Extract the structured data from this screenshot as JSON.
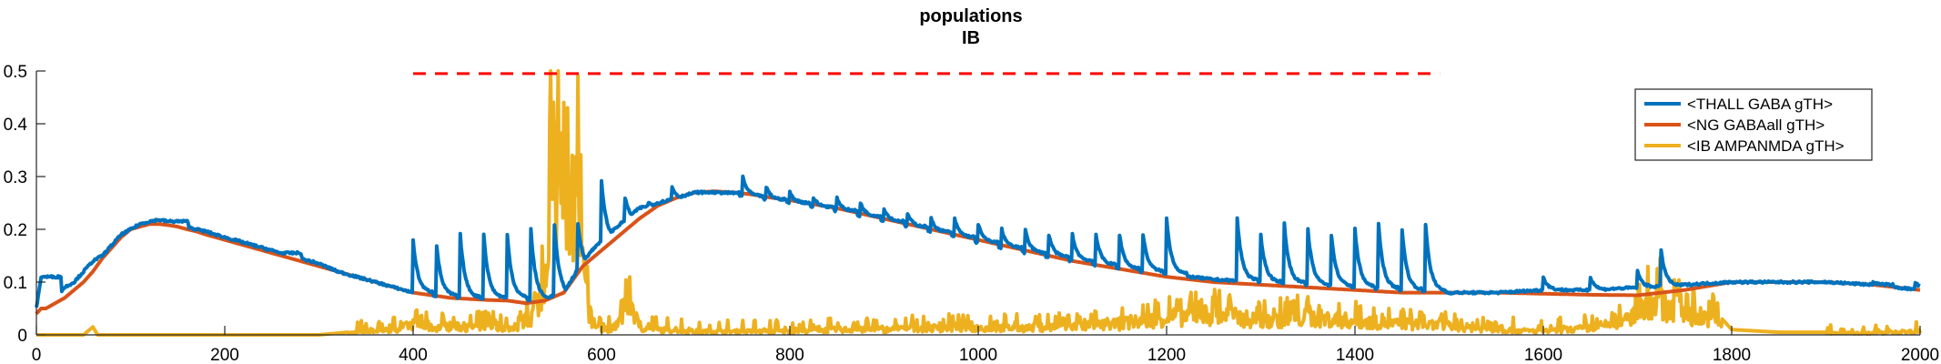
{
  "chart_data": {
    "type": "line",
    "title": "populations",
    "subtitle": "IB",
    "xlabel": "",
    "ylabel": "",
    "xlim": [
      0,
      2000
    ],
    "ylim": [
      0,
      0.5
    ],
    "xticks": [
      0,
      200,
      400,
      600,
      800,
      1000,
      1200,
      1400,
      1600,
      1800,
      2000
    ],
    "yticks": [
      0,
      0.1,
      0.2,
      0.3,
      0.4,
      0.5
    ],
    "ytick_labels": [
      "0",
      "0.1",
      "0.2",
      "0.3",
      "0.4",
      "0.5"
    ],
    "grid": false,
    "legend_position": "top-right",
    "series": [
      {
        "name": "<THALL GABA gTH>",
        "color": "#0072BD",
        "x": [
          0,
          5,
          12,
          20,
          30,
          40,
          50,
          60,
          70,
          80,
          90,
          100,
          110,
          120,
          130,
          140,
          150,
          160,
          170,
          180,
          190,
          200,
          220,
          240,
          260,
          280,
          300,
          320,
          340,
          360,
          380,
          400,
          420,
          440,
          460,
          480,
          500,
          520,
          540,
          560,
          580,
          600,
          620,
          640,
          660,
          680,
          700,
          720,
          740,
          760,
          780,
          800,
          850,
          900,
          950,
          1000,
          1050,
          1100,
          1150,
          1200,
          1250,
          1300,
          1350,
          1400,
          1450,
          1500,
          1550,
          1600,
          1650,
          1700,
          1750,
          1800,
          1850,
          1900,
          1950,
          2000
        ],
        "y": [
          0.05,
          0.11,
          0.07,
          0.07,
          0.09,
          0.1,
          0.12,
          0.14,
          0.15,
          0.17,
          0.19,
          0.2,
          0.21,
          0.215,
          0.218,
          0.215,
          0.21,
          0.205,
          0.2,
          0.196,
          0.19,
          0.185,
          0.175,
          0.165,
          0.155,
          0.145,
          0.135,
          0.12,
          0.11,
          0.1,
          0.09,
          0.08,
          0.075,
          0.07,
          0.07,
          0.07,
          0.07,
          0.065,
          0.07,
          0.08,
          0.14,
          0.18,
          0.21,
          0.24,
          0.25,
          0.26,
          0.27,
          0.27,
          0.265,
          0.26,
          0.255,
          0.25,
          0.235,
          0.215,
          0.195,
          0.175,
          0.155,
          0.14,
          0.125,
          0.115,
          0.105,
          0.1,
          0.095,
          0.09,
          0.085,
          0.08,
          0.08,
          0.085,
          0.085,
          0.09,
          0.095,
          0.1,
          0.1,
          0.1,
          0.095,
          0.085
        ],
        "peaks": [
          [
            5,
            0.11
          ],
          [
            60,
            0.1
          ],
          [
            140,
            0.21
          ],
          [
            260,
            0.13
          ],
          [
            400,
            0.18
          ],
          [
            425,
            0.17
          ],
          [
            450,
            0.19
          ],
          [
            475,
            0.19
          ],
          [
            500,
            0.19
          ],
          [
            525,
            0.2
          ],
          [
            550,
            0.21
          ],
          [
            575,
            0.21
          ],
          [
            600,
            0.29
          ],
          [
            625,
            0.26
          ],
          [
            650,
            0.25
          ],
          [
            675,
            0.28
          ],
          [
            700,
            0.27
          ],
          [
            725,
            0.27
          ],
          [
            750,
            0.3
          ],
          [
            775,
            0.28
          ],
          [
            800,
            0.27
          ],
          [
            825,
            0.26
          ],
          [
            850,
            0.26
          ],
          [
            875,
            0.25
          ],
          [
            900,
            0.24
          ],
          [
            925,
            0.23
          ],
          [
            950,
            0.22
          ],
          [
            975,
            0.22
          ],
          [
            1000,
            0.21
          ],
          [
            1025,
            0.2
          ],
          [
            1050,
            0.2
          ],
          [
            1075,
            0.19
          ],
          [
            1100,
            0.19
          ],
          [
            1125,
            0.19
          ],
          [
            1150,
            0.19
          ],
          [
            1175,
            0.19
          ],
          [
            1200,
            0.22
          ],
          [
            1275,
            0.22
          ],
          [
            1300,
            0.19
          ],
          [
            1325,
            0.21
          ],
          [
            1350,
            0.2
          ],
          [
            1375,
            0.19
          ],
          [
            1400,
            0.2
          ],
          [
            1425,
            0.21
          ],
          [
            1450,
            0.2
          ],
          [
            1475,
            0.21
          ],
          [
            1600,
            0.11
          ],
          [
            1650,
            0.11
          ],
          [
            1700,
            0.12
          ],
          [
            1725,
            0.16
          ],
          [
            1950,
            0.1
          ],
          [
            1995,
            0.1
          ]
        ]
      },
      {
        "name": "<NG GABAall gTH>",
        "color": "#D95319",
        "x": [
          0,
          5,
          10,
          20,
          30,
          40,
          50,
          60,
          70,
          80,
          90,
          100,
          110,
          120,
          130,
          140,
          150,
          160,
          170,
          180,
          190,
          200,
          220,
          240,
          260,
          280,
          300,
          320,
          340,
          360,
          380,
          400,
          420,
          440,
          460,
          480,
          500,
          520,
          540,
          560,
          580,
          600,
          620,
          640,
          660,
          680,
          700,
          720,
          740,
          760,
          780,
          800,
          850,
          900,
          950,
          1000,
          1050,
          1100,
          1150,
          1200,
          1250,
          1300,
          1350,
          1400,
          1450,
          1500,
          1550,
          1600,
          1650,
          1700,
          1750,
          1800,
          1850,
          1900,
          1950,
          2000
        ],
        "y": [
          0.04,
          0.05,
          0.05,
          0.06,
          0.07,
          0.085,
          0.1,
          0.12,
          0.145,
          0.165,
          0.185,
          0.2,
          0.205,
          0.21,
          0.21,
          0.208,
          0.205,
          0.2,
          0.196,
          0.19,
          0.185,
          0.18,
          0.17,
          0.16,
          0.15,
          0.14,
          0.13,
          0.12,
          0.11,
          0.1,
          0.09,
          0.08,
          0.075,
          0.07,
          0.068,
          0.066,
          0.065,
          0.06,
          0.065,
          0.08,
          0.13,
          0.16,
          0.19,
          0.22,
          0.245,
          0.26,
          0.27,
          0.272,
          0.27,
          0.266,
          0.26,
          0.255,
          0.24,
          0.22,
          0.2,
          0.18,
          0.16,
          0.14,
          0.125,
          0.11,
          0.1,
          0.095,
          0.09,
          0.085,
          0.08,
          0.08,
          0.08,
          0.078,
          0.076,
          0.075,
          0.085,
          0.1,
          0.1,
          0.1,
          0.095,
          0.085
        ]
      },
      {
        "name": "<IB AMPANMDA gTH>",
        "color": "#EDB120",
        "x": [
          0,
          50,
          60,
          65,
          80,
          100,
          150,
          200,
          250,
          300,
          330,
          350,
          380,
          400,
          420,
          440,
          460,
          480,
          500,
          510,
          520,
          530,
          540,
          545,
          550,
          555,
          560,
          565,
          570,
          575,
          580,
          585,
          590,
          600,
          610,
          620,
          630,
          640,
          660,
          700,
          750,
          800,
          850,
          900,
          950,
          1000,
          1050,
          1100,
          1150,
          1200,
          1250,
          1300,
          1350,
          1400,
          1450,
          1500,
          1550,
          1600,
          1650,
          1690,
          1700,
          1710,
          1720,
          1730,
          1750,
          1780,
          1800,
          1850,
          1900,
          1950,
          2000
        ],
        "y": [
          0,
          0,
          0.015,
          0,
          0,
          0,
          0,
          0,
          0,
          0,
          0.005,
          0.01,
          0.015,
          0.03,
          0.02,
          0.025,
          0.02,
          0.03,
          0.02,
          0.02,
          0.04,
          0.09,
          0.2,
          0.32,
          0.42,
          0.48,
          0.5,
          0.5,
          0.45,
          0.35,
          0.2,
          0.1,
          0.04,
          0.02,
          0.015,
          0.04,
          0.11,
          0.02,
          0.015,
          0.01,
          0.01,
          0.01,
          0.015,
          0.015,
          0.02,
          0.02,
          0.02,
          0.025,
          0.03,
          0.05,
          0.06,
          0.04,
          0.05,
          0.04,
          0.03,
          0.025,
          0.015,
          0.01,
          0.02,
          0.04,
          0.07,
          0.09,
          0.1,
          0.08,
          0.06,
          0.05,
          0.01,
          0.005,
          0.005,
          0.005,
          0.01
        ]
      }
    ],
    "reference_line": {
      "y": 0.495,
      "x_start": 400,
      "x_end": 1490,
      "color": "#FF0000",
      "style": "dashed"
    }
  }
}
